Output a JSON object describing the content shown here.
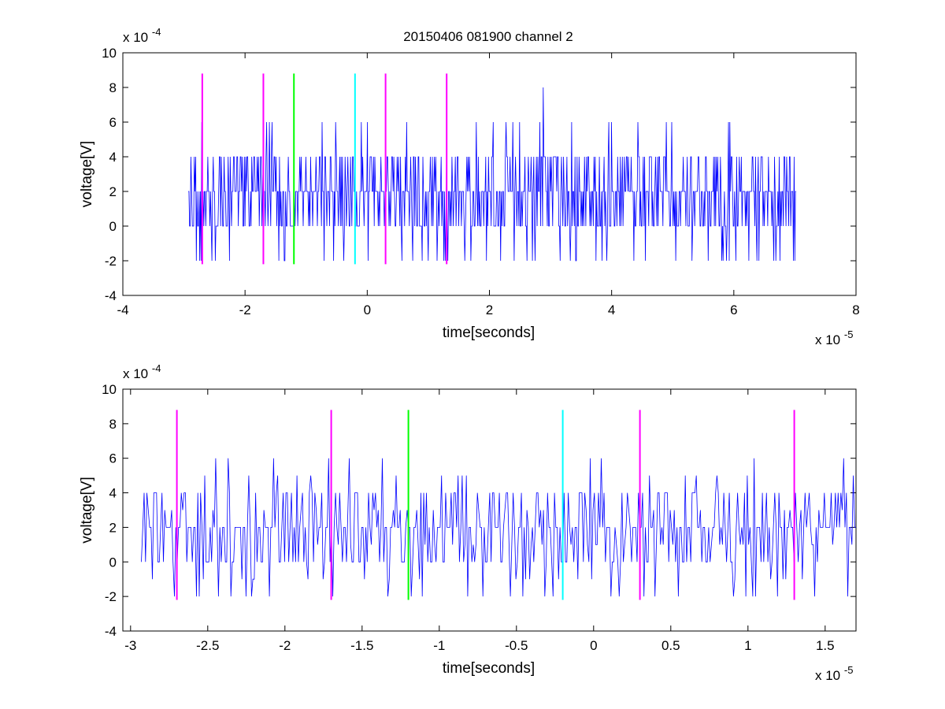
{
  "figure": {
    "title": "20150406 081900 channel 2"
  },
  "colors": {
    "signal": "#0000ff",
    "magenta": "#ff00ff",
    "green": "#00ff00",
    "cyan": "#00ffff",
    "axes": "#000000"
  },
  "chart_data": [
    {
      "type": "line",
      "title": "20150406 081900 channel 2",
      "xlabel": "time[seconds]",
      "ylabel": "voltage[V]",
      "x_exponent": "x 10",
      "x_exponent_power": "-5",
      "y_exponent": "x 10",
      "y_exponent_power": "-4",
      "xlim": [
        -4,
        8
      ],
      "ylim": [
        -4,
        10
      ],
      "xticks": [
        -4,
        -2,
        0,
        2,
        4,
        6,
        8
      ],
      "xtick_labels": [
        "-4",
        "-2",
        "0",
        "2",
        "4",
        "6",
        "8"
      ],
      "yticks": [
        -4,
        -2,
        0,
        2,
        4,
        6,
        8,
        10
      ],
      "ytick_labels": [
        "-4",
        "-2",
        "0",
        "2",
        "4",
        "6",
        "8",
        "10"
      ],
      "grid": false,
      "series": [
        {
          "color": "#0000ff",
          "x_range": [
            -2.93,
            7.02
          ],
          "levels": [
            -2,
            0,
            2,
            4,
            6,
            8
          ],
          "baseline": 2,
          "description_values": [
            0,
            2,
            4
          ]
        }
      ],
      "markers": [
        {
          "x": -2.7,
          "color": "#ff00ff",
          "ymin": -2.2,
          "ymax": 8.8
        },
        {
          "x": -1.7,
          "color": "#ff00ff",
          "ymin": -2.2,
          "ymax": 8.8
        },
        {
          "x": -1.2,
          "color": "#00ff00",
          "ymin": -2.2,
          "ymax": 8.8
        },
        {
          "x": -0.2,
          "color": "#00ffff",
          "ymin": -2.2,
          "ymax": 8.8
        },
        {
          "x": 0.3,
          "color": "#ff00ff",
          "ymin": -2.2,
          "ymax": 8.8
        },
        {
          "x": 1.3,
          "color": "#ff00ff",
          "ymin": -2.2,
          "ymax": 8.8
        }
      ]
    },
    {
      "type": "line",
      "title": "",
      "xlabel": "time[seconds]",
      "ylabel": "voltage[V]",
      "x_exponent": "x 10",
      "x_exponent_power": "-5",
      "y_exponent": "x 10",
      "y_exponent_power": "-4",
      "xlim": [
        -3.05,
        1.7
      ],
      "ylim": [
        -4,
        10
      ],
      "xticks": [
        -3,
        -2.5,
        -2,
        -1.5,
        -1,
        -0.5,
        0,
        0.5,
        1,
        1.5
      ],
      "xtick_labels": [
        "-3",
        "-2.5",
        "-2",
        "-1.5",
        "-1",
        "-0.5",
        "0",
        "0.5",
        "1",
        "1.5"
      ],
      "yticks": [
        -4,
        -2,
        0,
        2,
        4,
        6,
        8,
        10
      ],
      "ytick_labels": [
        "-4",
        "-2",
        "0",
        "2",
        "4",
        "6",
        "8",
        "10"
      ],
      "grid": false,
      "series": [
        {
          "color": "#0000ff",
          "x_range": [
            -2.93,
            1.7
          ],
          "levels": [
            -2,
            -1,
            0,
            1,
            2,
            3,
            4,
            5,
            6
          ],
          "baseline": 2
        }
      ],
      "markers": [
        {
          "x": -2.7,
          "color": "#ff00ff",
          "ymin": -2.2,
          "ymax": 8.8
        },
        {
          "x": -1.7,
          "color": "#ff00ff",
          "ymin": -2.2,
          "ymax": 8.8
        },
        {
          "x": -1.2,
          "color": "#00ff00",
          "ymin": -2.2,
          "ymax": 8.8
        },
        {
          "x": -0.2,
          "color": "#00ffff",
          "ymin": -2.2,
          "ymax": 8.8
        },
        {
          "x": 0.3,
          "color": "#ff00ff",
          "ymin": -2.2,
          "ymax": 8.8
        },
        {
          "x": 1.3,
          "color": "#ff00ff",
          "ymin": -2.2,
          "ymax": 8.8
        }
      ]
    }
  ]
}
